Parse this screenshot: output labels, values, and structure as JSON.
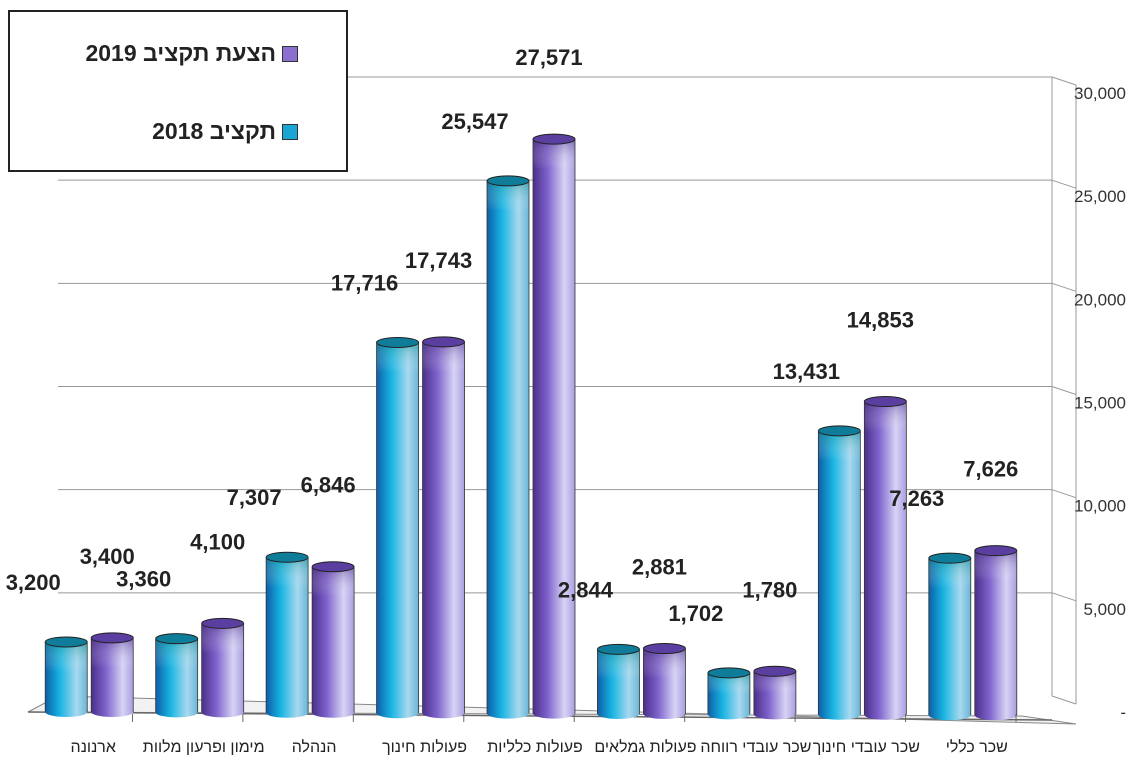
{
  "chart_data": {
    "type": "bar",
    "categories": [
      "ארנונה",
      "מימון ופרעון מלוות",
      "הנהלה",
      "פעולות חינוך",
      "פעולות כלליות",
      "פעולות גמלאים",
      "שכר עובדי רווחה",
      "שכר עובדי חינוך",
      "שכר כללי"
    ],
    "series": [
      {
        "name": "תקציב 2018",
        "values": [
          3200,
          3360,
          7307,
          17716,
          25547,
          2844,
          1702,
          13431,
          7263
        ],
        "color": "#1aa5d4"
      },
      {
        "name": "הצעת תקציב 2019",
        "values": [
          3400,
          4100,
          6846,
          17743,
          27571,
          2881,
          1780,
          14853,
          7626
        ],
        "color": "#8a6fd0"
      }
    ],
    "value_labels_2018": [
      "3,200",
      "3,360",
      "7,307",
      "17,716",
      "25,547",
      "2,844",
      "1,702",
      "13,431",
      "7,263"
    ],
    "value_labels_2019": [
      "3,400",
      "4,100",
      "6,846",
      "17,743",
      "27,571",
      "2,881",
      "1,780",
      "14,853",
      "7,626"
    ],
    "y_ticks": [
      0,
      5000,
      10000,
      15000,
      20000,
      25000,
      30000
    ],
    "y_tick_labels": [
      "-",
      "5,000",
      "10,000",
      "15,000",
      "20,000",
      "25,000",
      "30,000"
    ],
    "ylim": [
      0,
      30000
    ],
    "y_axis_side": "right",
    "grid": true,
    "legend_position": "top-left",
    "legend": {
      "item1": "הצעת תקציב 2019",
      "item2": "תקציב 2018"
    },
    "xlabel": "",
    "ylabel": ""
  }
}
